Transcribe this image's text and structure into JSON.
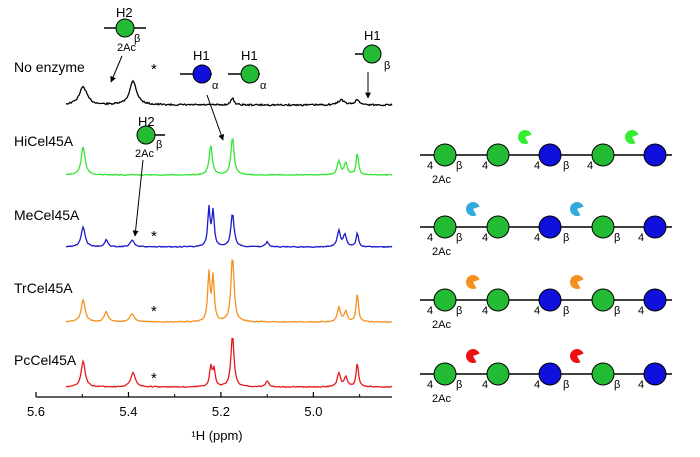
{
  "chart_data": {
    "type": "line",
    "xlabel": "¹H (ppm)",
    "ylabel": "",
    "x_reversed": true,
    "xlim": [
      5.6,
      4.83
    ],
    "x_ticks": [
      "5.6",
      "5.4",
      "5.2",
      "5.0"
    ],
    "series": [
      {
        "name": "No enzyme",
        "color": "#000000",
        "peaks": [
          {
            "x": 5.498,
            "h": 18,
            "w": 0.01
          },
          {
            "x": 5.39,
            "h": 24,
            "w": 0.009
          },
          {
            "x": 5.175,
            "h": 7,
            "w": 0.004
          },
          {
            "x": 4.94,
            "h": 5,
            "w": 0.008
          },
          {
            "x": 4.905,
            "h": 5,
            "w": 0.006
          }
        ]
      },
      {
        "name": "HiCel45A",
        "color": "#33e633",
        "peaks": [
          {
            "x": 5.498,
            "h": 28,
            "w": 0.005
          },
          {
            "x": 5.222,
            "h": 30,
            "w": 0.004
          },
          {
            "x": 5.175,
            "h": 38,
            "w": 0.004
          },
          {
            "x": 4.945,
            "h": 14,
            "w": 0.004
          },
          {
            "x": 4.93,
            "h": 12,
            "w": 0.004
          },
          {
            "x": 4.905,
            "h": 22,
            "w": 0.003
          }
        ]
      },
      {
        "name": "MeCel45A",
        "color": "#1a1acc",
        "peaks": [
          {
            "x": 5.498,
            "h": 20,
            "w": 0.005
          },
          {
            "x": 5.448,
            "h": 7,
            "w": 0.004
          },
          {
            "x": 5.392,
            "h": 7,
            "w": 0.005
          },
          {
            "x": 5.226,
            "h": 38,
            "w": 0.003
          },
          {
            "x": 5.217,
            "h": 35,
            "w": 0.003
          },
          {
            "x": 5.175,
            "h": 34,
            "w": 0.004
          },
          {
            "x": 5.1,
            "h": 5,
            "w": 0.004
          },
          {
            "x": 4.945,
            "h": 16,
            "w": 0.004
          },
          {
            "x": 4.932,
            "h": 12,
            "w": 0.004
          },
          {
            "x": 4.905,
            "h": 14,
            "w": 0.003
          }
        ]
      },
      {
        "name": "TrCel45A",
        "color": "#f5901e",
        "peaks": [
          {
            "x": 5.498,
            "h": 22,
            "w": 0.005
          },
          {
            "x": 5.448,
            "h": 10,
            "w": 0.005
          },
          {
            "x": 5.392,
            "h": 8,
            "w": 0.006
          },
          {
            "x": 5.226,
            "h": 48,
            "w": 0.003
          },
          {
            "x": 5.217,
            "h": 44,
            "w": 0.003
          },
          {
            "x": 5.175,
            "h": 66,
            "w": 0.004
          },
          {
            "x": 4.945,
            "h": 14,
            "w": 0.004
          },
          {
            "x": 4.93,
            "h": 10,
            "w": 0.004
          },
          {
            "x": 4.905,
            "h": 28,
            "w": 0.003
          }
        ]
      },
      {
        "name": "PcCel45A",
        "color": "#e61a1a",
        "peaks": [
          {
            "x": 5.498,
            "h": 26,
            "w": 0.005
          },
          {
            "x": 5.39,
            "h": 14,
            "w": 0.006
          },
          {
            "x": 5.222,
            "h": 20,
            "w": 0.003
          },
          {
            "x": 5.215,
            "h": 18,
            "w": 0.003
          },
          {
            "x": 5.175,
            "h": 52,
            "w": 0.004
          },
          {
            "x": 5.1,
            "h": 6,
            "w": 0.004
          },
          {
            "x": 4.945,
            "h": 14,
            "w": 0.004
          },
          {
            "x": 4.93,
            "h": 10,
            "w": 0.004
          },
          {
            "x": 4.905,
            "h": 24,
            "w": 0.003
          }
        ]
      }
    ],
    "annotations": {
      "asterisk": "*",
      "h2_label": "H2",
      "h1_label": "H1",
      "acetyl_label": "2Ac",
      "beta": "β",
      "alpha": "α",
      "position_label": "4"
    }
  },
  "colors": {
    "glc": "#22bb33",
    "man": "#1010dd",
    "he": "#33ee33",
    "me": "#33aadd",
    "tr": "#f5901e",
    "pc": "#ee1111"
  }
}
